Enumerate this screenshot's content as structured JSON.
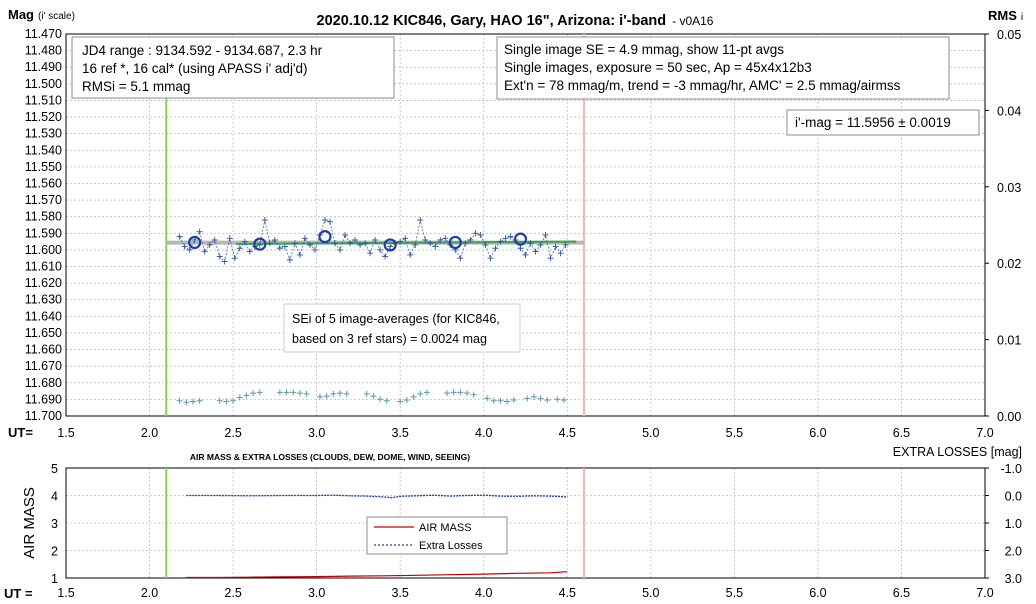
{
  "title": "2020.10.12 KIC846, Gary, HAO 16\", Arizona: i'-band",
  "version": "- v0A16",
  "top_chart": {
    "ylabel_main": "Mag",
    "ylabel_sub": "(i' scale)",
    "y2label_main": "RMS",
    "y2label_sub": "i",
    "xlabel": "UT=",
    "info_left": [
      "JD4 range : 9134.592 - 9134.687, 2.3  hr",
      "16 ref *, 16 cal* (using APASS i' adj'd)",
      "RMSi = 5.1 mmag"
    ],
    "info_right": [
      "Single image SE = 4.9 mmag, show 11-pt avgs",
      "Single images, exposure = 50 sec, Ap = 45x4x12b3",
      "Ext'n = 78 mmag/m, trend = -3 mmag/hr, AMC' = 2.5 mmag/airmss"
    ],
    "result": "i'-mag = 11.5956 ± 0.0019",
    "sei_note": [
      "SEi of 5 image-averages (for KIC846,",
      "based on 3 ref stars) = 0.0024 mag"
    ]
  },
  "bottom_chart": {
    "title": "AIR MASS & EXTRA LOSSES (CLOUDS, DEW, DOME, WIND, SEEING)",
    "ylabel": "AIR MASS",
    "y2label": "EXTRA LOSSES [mag]",
    "xlabel": "UT =",
    "legend": [
      "AIR MASS",
      "Extra Losses"
    ]
  },
  "colors": {
    "single": "#2f5597",
    "avg": "#1f3fa0",
    "rms": "#5a9aaa",
    "trend": "#3ea35a",
    "mean": "#b7b7b7",
    "start_line": "#92d050",
    "end_line": "#f4b7b7",
    "airmass": "#c00000",
    "losses": "#1f3fa0"
  },
  "chart_data": [
    {
      "type": "scatter",
      "title": "2020.10.12 KIC846, Gary, HAO 16\", Arizona: i'-band",
      "xlabel": "UT=",
      "ylabel": "Mag (i' scale)",
      "y2label": "RMS i",
      "xlim": [
        1.5,
        7.0
      ],
      "ylim": [
        11.47,
        11.7
      ],
      "y_inverted": true,
      "y2lim": [
        0.0,
        0.05
      ],
      "x_ticks": [
        "1.5",
        "2.0",
        "2.5",
        "3.0",
        "3.5",
        "4.0",
        "4.5",
        "5.0",
        "5.5",
        "6.0",
        "6.5",
        "7.0"
      ],
      "y_ticks": [
        "11.470",
        "11.480",
        "11.490",
        "11.500",
        "11.510",
        "11.520",
        "11.530",
        "11.540",
        "11.550",
        "11.560",
        "11.570",
        "11.580",
        "11.590",
        "11.600",
        "11.610",
        "11.620",
        "11.630",
        "11.640",
        "11.650",
        "11.660",
        "11.670",
        "11.680",
        "11.690",
        "11.700"
      ],
      "y2_ticks": [
        "0.05",
        "0.04",
        "0.03",
        "0.02",
        "0.01",
        "0.00"
      ],
      "grid": true,
      "vertical_markers": [
        2.1,
        4.6
      ],
      "series": [
        {
          "name": "single images",
          "x": [
            2.18,
            2.21,
            2.24,
            2.27,
            2.3,
            2.33,
            2.36,
            2.39,
            2.42,
            2.45,
            2.48,
            2.51,
            2.54,
            2.57,
            2.6,
            2.63,
            2.66,
            2.69,
            2.72,
            2.75,
            2.78,
            2.81,
            2.84,
            2.87,
            2.9,
            2.93,
            2.96,
            2.99,
            3.02,
            3.05,
            3.08,
            3.11,
            3.14,
            3.17,
            3.2,
            3.23,
            3.26,
            3.29,
            3.32,
            3.35,
            3.38,
            3.41,
            3.44,
            3.47,
            3.5,
            3.53,
            3.56,
            3.59,
            3.62,
            3.65,
            3.68,
            3.71,
            3.74,
            3.77,
            3.8,
            3.83,
            3.86,
            3.89,
            3.92,
            3.95,
            3.98,
            4.01,
            4.04,
            4.07,
            4.1,
            4.13,
            4.16,
            4.19,
            4.22,
            4.25,
            4.28,
            4.31,
            4.34,
            4.37,
            4.4,
            4.43,
            4.46,
            4.49
          ],
          "y": [
            11.592,
            11.598,
            11.6,
            11.594,
            11.589,
            11.601,
            11.597,
            11.594,
            11.604,
            11.607,
            11.593,
            11.605,
            11.599,
            11.595,
            11.601,
            11.598,
            11.597,
            11.582,
            11.596,
            11.594,
            11.599,
            11.598,
            11.606,
            11.596,
            11.603,
            11.593,
            11.597,
            11.6,
            11.591,
            11.582,
            11.583,
            11.596,
            11.6,
            11.591,
            11.596,
            11.594,
            11.597,
            11.596,
            11.602,
            11.594,
            11.6,
            11.604,
            11.598,
            11.596,
            11.595,
            11.593,
            11.603,
            11.597,
            11.582,
            11.594,
            11.596,
            11.598,
            11.594,
            11.593,
            11.597,
            11.6,
            11.605,
            11.596,
            11.594,
            11.59,
            11.591,
            11.597,
            11.605,
            11.599,
            11.595,
            11.593,
            11.592,
            11.594,
            11.599,
            11.603,
            11.596,
            11.601,
            11.597,
            11.591,
            11.605,
            11.598,
            11.602,
            11.597
          ]
        },
        {
          "name": "11-pt averages",
          "x": [
            2.27,
            2.66,
            3.05,
            3.44,
            3.83,
            4.22
          ],
          "y": [
            11.5955,
            11.5965,
            11.592,
            11.597,
            11.5955,
            11.5935
          ]
        },
        {
          "name": "RMS",
          "axis": "y2",
          "x": [
            2.18,
            2.22,
            2.26,
            2.3,
            2.42,
            2.46,
            2.5,
            2.54,
            2.58,
            2.62,
            2.66,
            2.78,
            2.82,
            2.86,
            2.9,
            2.94,
            3.02,
            3.06,
            3.1,
            3.14,
            3.18,
            3.3,
            3.34,
            3.38,
            3.42,
            3.5,
            3.54,
            3.58,
            3.62,
            3.66,
            3.78,
            3.82,
            3.86,
            3.9,
            3.94,
            4.02,
            4.06,
            4.1,
            4.14,
            4.18,
            4.26,
            4.3,
            4.34,
            4.38,
            4.44,
            4.48
          ],
          "y": [
            0.002,
            0.0018,
            0.0019,
            0.002,
            0.002,
            0.0019,
            0.002,
            0.0024,
            0.0027,
            0.003,
            0.0031,
            0.0031,
            0.0031,
            0.0031,
            0.003,
            0.0029,
            0.0025,
            0.0026,
            0.0029,
            0.003,
            0.0029,
            0.0029,
            0.0026,
            0.0022,
            0.002,
            0.0019,
            0.0021,
            0.0025,
            0.0029,
            0.0031,
            0.003,
            0.0031,
            0.0031,
            0.003,
            0.0028,
            0.0023,
            0.002,
            0.002,
            0.0019,
            0.0021,
            0.0023,
            0.0025,
            0.0023,
            0.0021,
            0.0022,
            0.0021
          ]
        },
        {
          "name": "trend",
          "x": [
            2.1,
            4.6
          ],
          "y": [
            11.5972,
            11.5944
          ]
        },
        {
          "name": "mean",
          "x": [
            2.1,
            4.6
          ],
          "y": [
            11.5956,
            11.5956
          ]
        }
      ]
    },
    {
      "type": "line",
      "title": "AIR MASS & EXTRA LOSSES (CLOUDS, DEW, DOME, WIND, SEEING)",
      "xlabel": "UT =",
      "ylabel": "AIR MASS",
      "y2label": "EXTRA LOSSES [mag]",
      "xlim": [
        1.5,
        7.0
      ],
      "ylim": [
        1,
        5
      ],
      "y2lim": [
        3.0,
        -1.0
      ],
      "x_ticks": [
        "1.5",
        "2.0",
        "2.5",
        "3.0",
        "3.5",
        "4.0",
        "4.5",
        "5.0",
        "5.5",
        "6.0",
        "6.5",
        "7.0"
      ],
      "y_ticks": [
        "5",
        "4",
        "3",
        "2",
        "1"
      ],
      "y2_ticks": [
        "-1.0",
        "0.0",
        "1.0",
        "2.0",
        "3.0"
      ],
      "grid": true,
      "vertical_markers": [
        2.1,
        4.6
      ],
      "legend_position": "center",
      "series": [
        {
          "name": "AIR MASS",
          "x": [
            2.22,
            2.4,
            2.6,
            2.8,
            3.0,
            3.1,
            3.2,
            3.4,
            3.6,
            3.8,
            4.0,
            4.2,
            4.4,
            4.5
          ],
          "y": [
            1.02,
            1.02,
            1.03,
            1.04,
            1.05,
            1.06,
            1.07,
            1.08,
            1.1,
            1.12,
            1.14,
            1.17,
            1.19,
            1.23
          ]
        },
        {
          "name": "Extra Losses",
          "x": [
            2.22,
            2.4,
            2.6,
            2.8,
            3.0,
            3.1,
            3.2,
            3.3,
            3.4,
            3.45,
            3.5,
            3.6,
            3.7,
            3.8,
            3.9,
            4.0,
            4.1,
            4.2,
            4.3,
            4.4,
            4.5
          ],
          "y": [
            0.0,
            0.0,
            0.01,
            0.0,
            0.0,
            -0.01,
            0.01,
            0.02,
            0.05,
            0.08,
            0.03,
            0.01,
            -0.01,
            0.02,
            0.0,
            -0.01,
            0.02,
            0.03,
            0.01,
            0.02,
            0.05
          ]
        }
      ]
    }
  ]
}
